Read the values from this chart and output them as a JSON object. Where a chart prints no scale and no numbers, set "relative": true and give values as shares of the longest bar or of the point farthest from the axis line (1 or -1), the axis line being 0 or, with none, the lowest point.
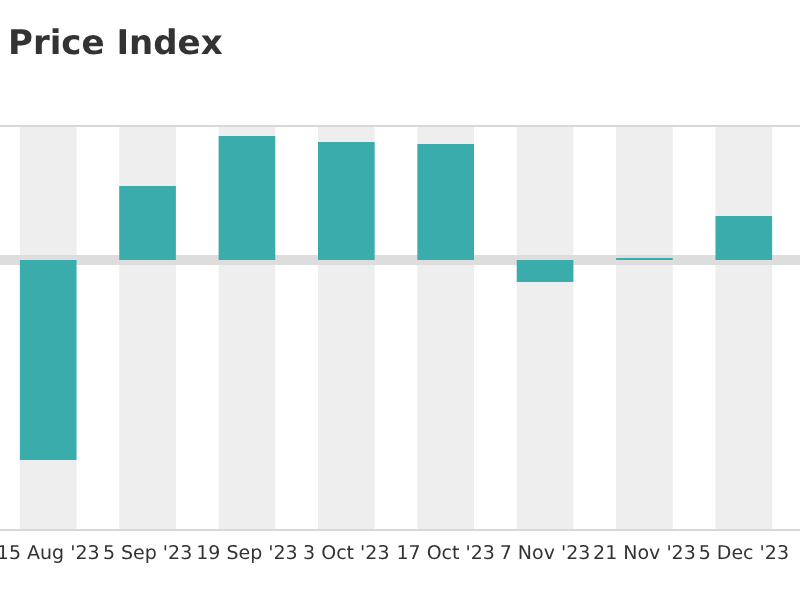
{
  "chart_data": {
    "type": "bar",
    "title": "Price Index",
    "categories": [
      "15 Aug '23",
      "5 Sep '23",
      "19 Sep '23",
      "3 Oct '23",
      "17 Oct '23",
      "7 Nov '23",
      "21 Nov '23",
      "5 Dec '23"
    ],
    "values": [
      -1,
      0.37,
      0.62,
      0.59,
      0.58,
      -0.11,
      0.01,
      0.22
    ],
    "color": "#3aacac",
    "relative": true
  }
}
